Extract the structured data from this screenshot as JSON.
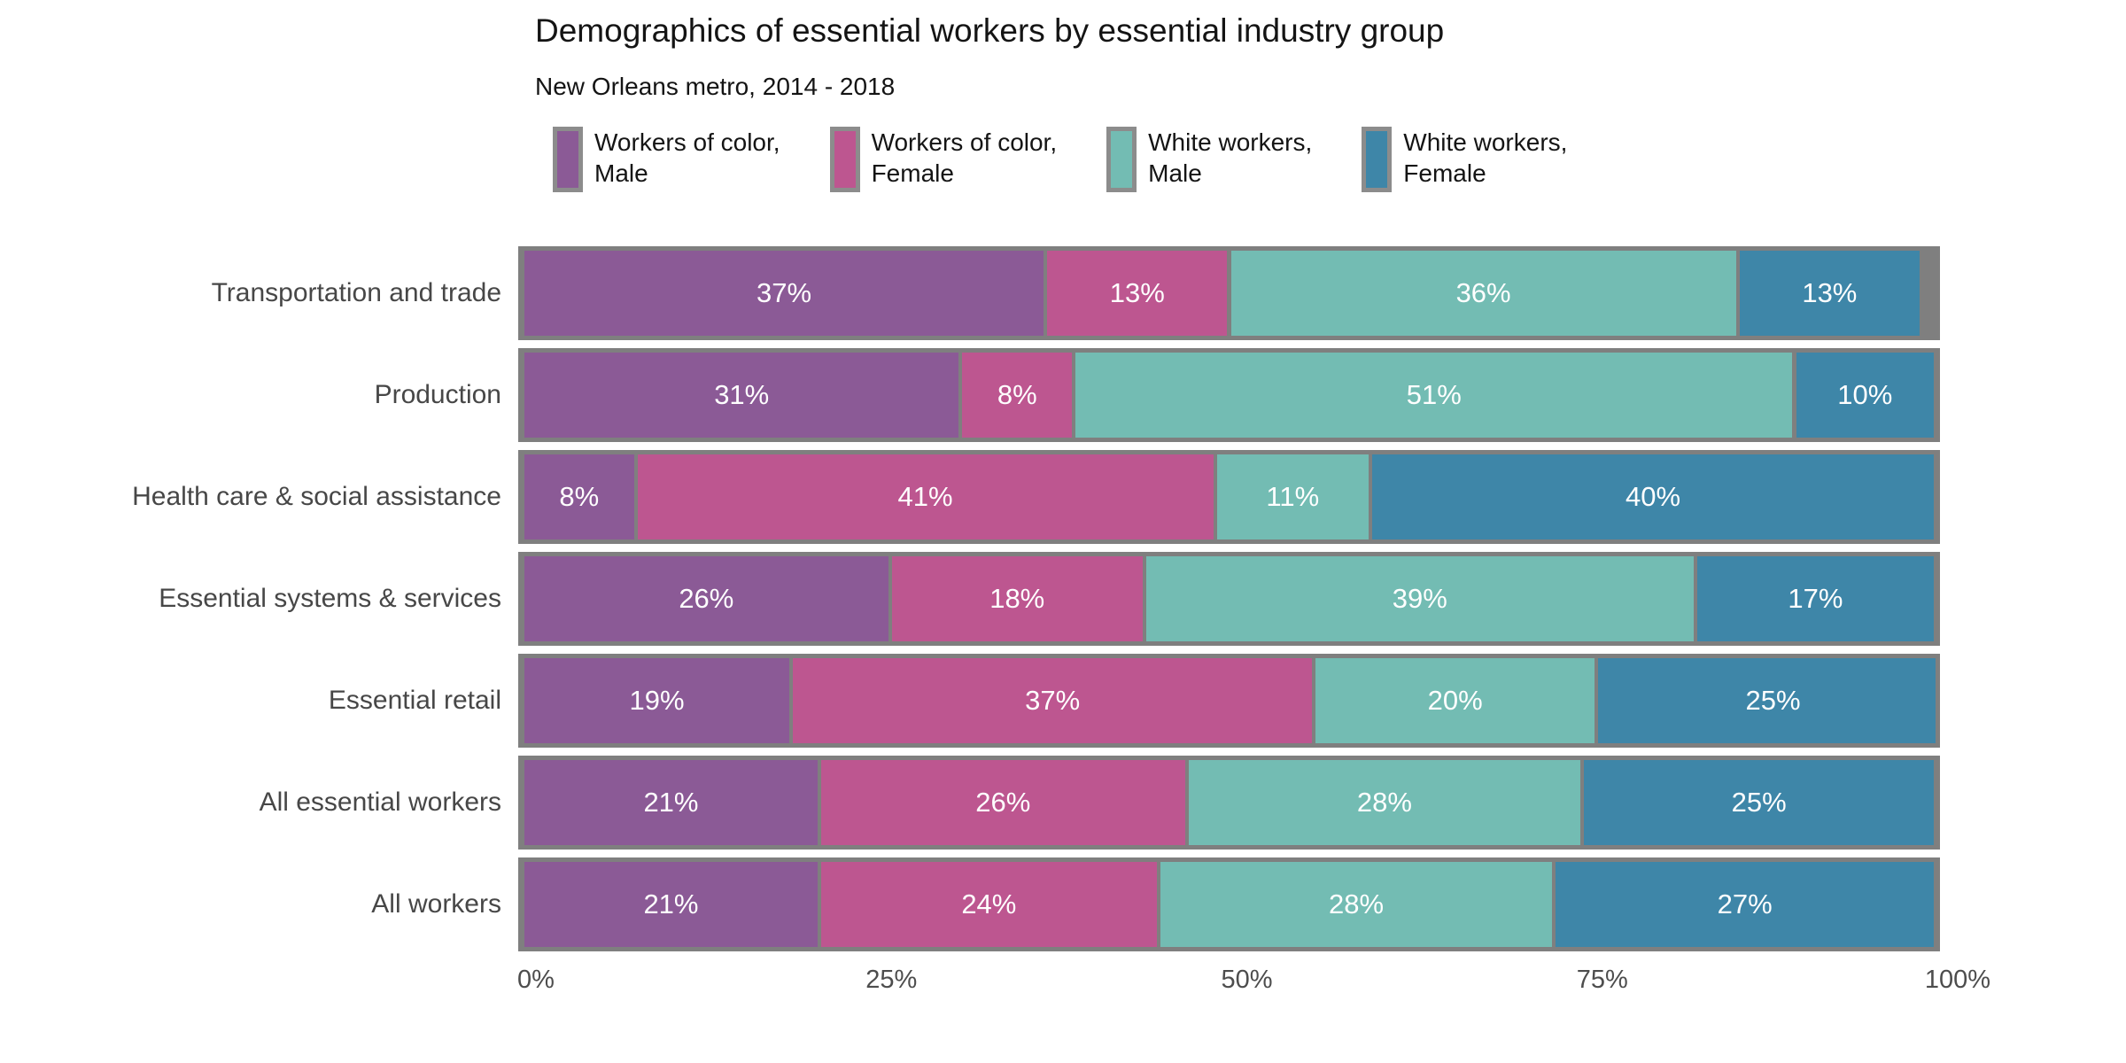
{
  "title": "Demographics of essential workers by essential industry group",
  "subtitle": "New Orleans metro, 2014 - 2018",
  "colors": {
    "workers_of_color_male": "#8B5A96",
    "workers_of_color_female": "#BD5690",
    "white_workers_male": "#73BCB3",
    "white_workers_female": "#3E86A8",
    "bar_track_gray": "#7F7F7F",
    "legend_swatch_border": "#8C8C8C",
    "heading_text": "#141414",
    "axis_text": "#4D4D4D"
  },
  "legend": {
    "items": [
      {
        "line1": "Workers of color,",
        "line2": "Male",
        "color": "#8B5A96"
      },
      {
        "line1": "Workers of color,",
        "line2": "Female",
        "color": "#BD5690"
      },
      {
        "line1": "White workers,",
        "line2": "Male",
        "color": "#73BCB3"
      },
      {
        "line1": "White workers,",
        "line2": "Female",
        "color": "#3E86A8"
      }
    ]
  },
  "chart_data": {
    "type": "bar",
    "orientation": "horizontal-stacked",
    "title": "Demographics of essential workers by essential industry group",
    "subtitle": "New Orleans metro, 2014 - 2018",
    "legend_position": "top",
    "grid": false,
    "value_suffix": "%",
    "categories": [
      "Transportation and trade",
      "Production",
      "Health care & social assistance",
      "Essential systems & services",
      "Essential retail",
      "All essential workers",
      "All workers"
    ],
    "series": [
      {
        "name": "Workers of color, Male",
        "color": "#8B5A96",
        "values": [
          37,
          31,
          8,
          26,
          19,
          21,
          21
        ]
      },
      {
        "name": "Workers of color, Female",
        "color": "#BD5690",
        "values": [
          13,
          8,
          41,
          18,
          37,
          26,
          24
        ]
      },
      {
        "name": "White workers, Male",
        "color": "#73BCB3",
        "values": [
          36,
          51,
          11,
          39,
          20,
          28,
          28
        ]
      },
      {
        "name": "White workers, Female",
        "color": "#3E86A8",
        "values": [
          13,
          10,
          40,
          17,
          25,
          25,
          27
        ]
      }
    ],
    "x_axis": {
      "range": [
        0,
        100
      ],
      "tick_labels": [
        "0%",
        "25%",
        "50%",
        "75%",
        "100%"
      ]
    }
  }
}
